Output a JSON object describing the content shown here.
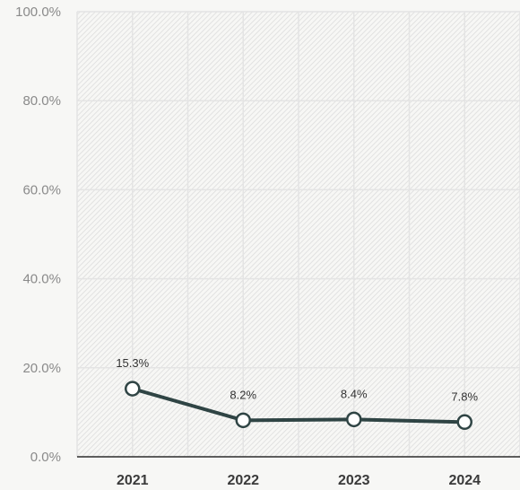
{
  "chart_data": {
    "type": "line",
    "title": "",
    "xlabel": "",
    "ylabel": "",
    "categories": [
      "2021",
      "2022",
      "2023",
      "2024"
    ],
    "series": [
      {
        "values": [
          15.3,
          8.2,
          8.4,
          7.8
        ],
        "labels": [
          "15.3%",
          "8.2%",
          "8.4%",
          "7.8%"
        ]
      }
    ],
    "ylim": [
      0,
      100
    ],
    "yticks": [
      0,
      20,
      40,
      60,
      80,
      100
    ],
    "ytick_labels": [
      "0.0%",
      "20.0%",
      "40.0%",
      "60.0%",
      "80.0%",
      "100.0%"
    ],
    "grid": true,
    "legend": "none",
    "colors": {
      "line": "#2f4444",
      "marker_fill": "#ffffff",
      "background": "#f7f7f5",
      "hatch": "#dedede"
    }
  }
}
